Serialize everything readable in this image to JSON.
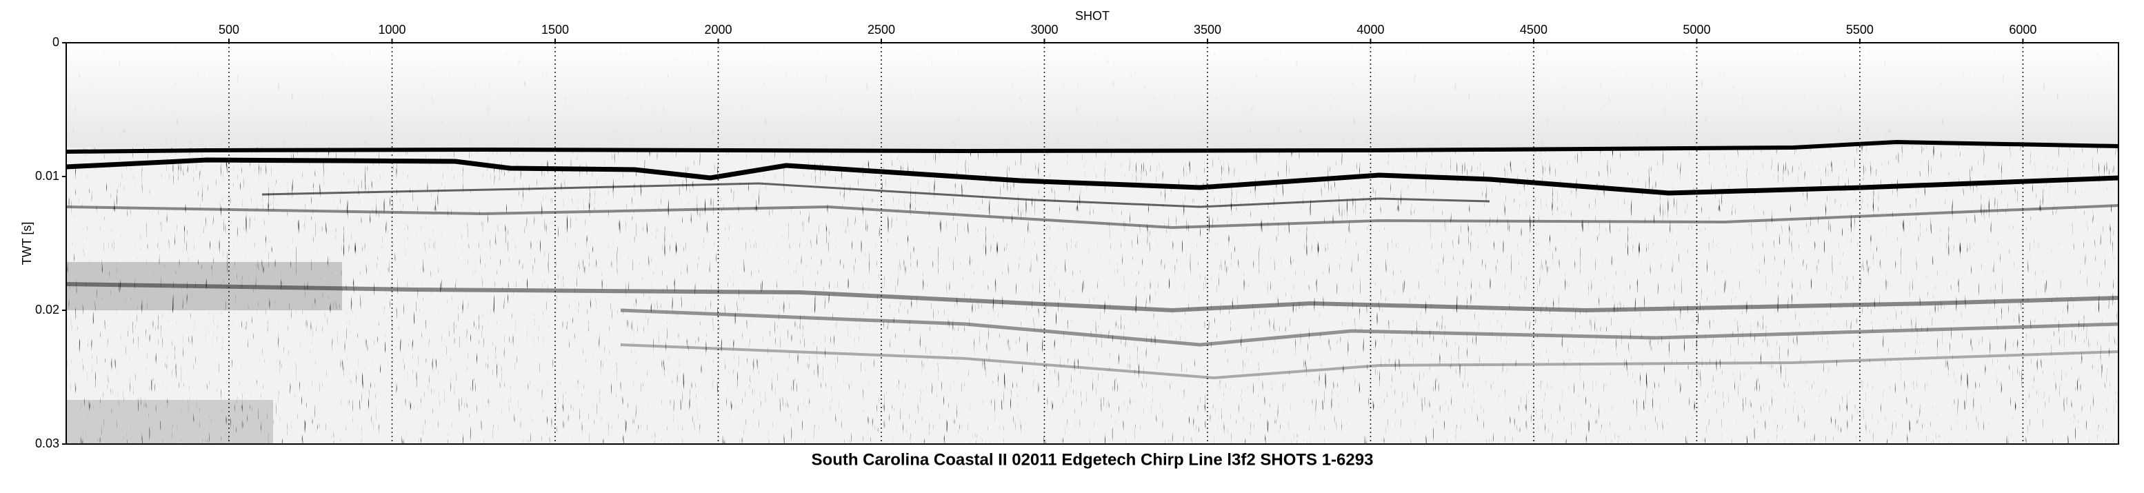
{
  "chart_data": {
    "type": "seismic",
    "title": "South Carolina Coastal II 02011 Edgetech Chirp Line l3f2 SHOTS 1-6293",
    "x_label": "SHOT",
    "y_label": "TWT [s]",
    "xlim": [
      1,
      6293
    ],
    "xticks": [
      500,
      1000,
      1500,
      2000,
      2500,
      3000,
      3500,
      4000,
      4500,
      5000,
      5500,
      6000
    ],
    "ylim": [
      0,
      0.03
    ],
    "yticks": [
      0,
      0.01,
      0.02,
      0.03
    ],
    "grid": true
  }
}
